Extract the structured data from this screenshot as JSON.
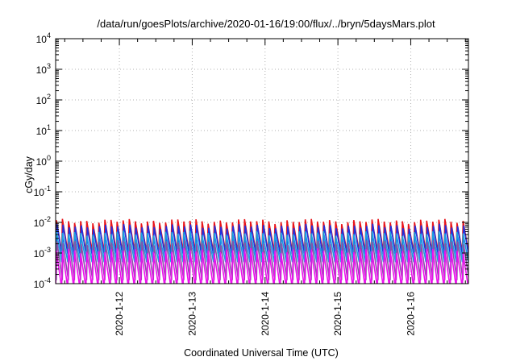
{
  "chart_data": {
    "type": "line",
    "title": "/data/run/goesPlots/archive/2020-01-16/19:00/flux/../bryn/5daysMars.plot",
    "xlabel": "Coordinated Universal Time (UTC)",
    "ylabel": "cGy/day",
    "yscale": "log",
    "ylim": [
      0.0001,
      10000
    ],
    "y_ticks": [
      {
        "base": "10",
        "exp": "4"
      },
      {
        "base": "10",
        "exp": "3"
      },
      {
        "base": "10",
        "exp": "2"
      },
      {
        "base": "10",
        "exp": "1"
      },
      {
        "base": "10",
        "exp": "0"
      },
      {
        "base": "10",
        "exp": "-1"
      },
      {
        "base": "10",
        "exp": "-2"
      },
      {
        "base": "10",
        "exp": "-3"
      },
      {
        "base": "10",
        "exp": "-4"
      }
    ],
    "xlim": [
      "2020-01-11T03:00",
      "2020-01-16T19:00"
    ],
    "x_ticks": [
      "2020-1-12",
      "2020-1-13",
      "2020-1-14",
      "2020-1-15",
      "2020-1-16"
    ],
    "grid": true,
    "legend": "none",
    "sawtooth_period_hours": 2,
    "series": [
      {
        "color": "#e8141a",
        "peak": 0.011,
        "trough": 0.0011
      },
      {
        "color": "#1e32e0",
        "peak": 0.0075,
        "trough": 0.0007
      },
      {
        "color": "#1aa0e0",
        "peak": 0.0045,
        "trough": 0.0005
      },
      {
        "color": "#8a4fa8",
        "peak": 0.0022,
        "trough": 0.00013
      },
      {
        "color": "#ee10ee",
        "peak": 0.0012,
        "trough": 7e-05
      }
    ]
  }
}
